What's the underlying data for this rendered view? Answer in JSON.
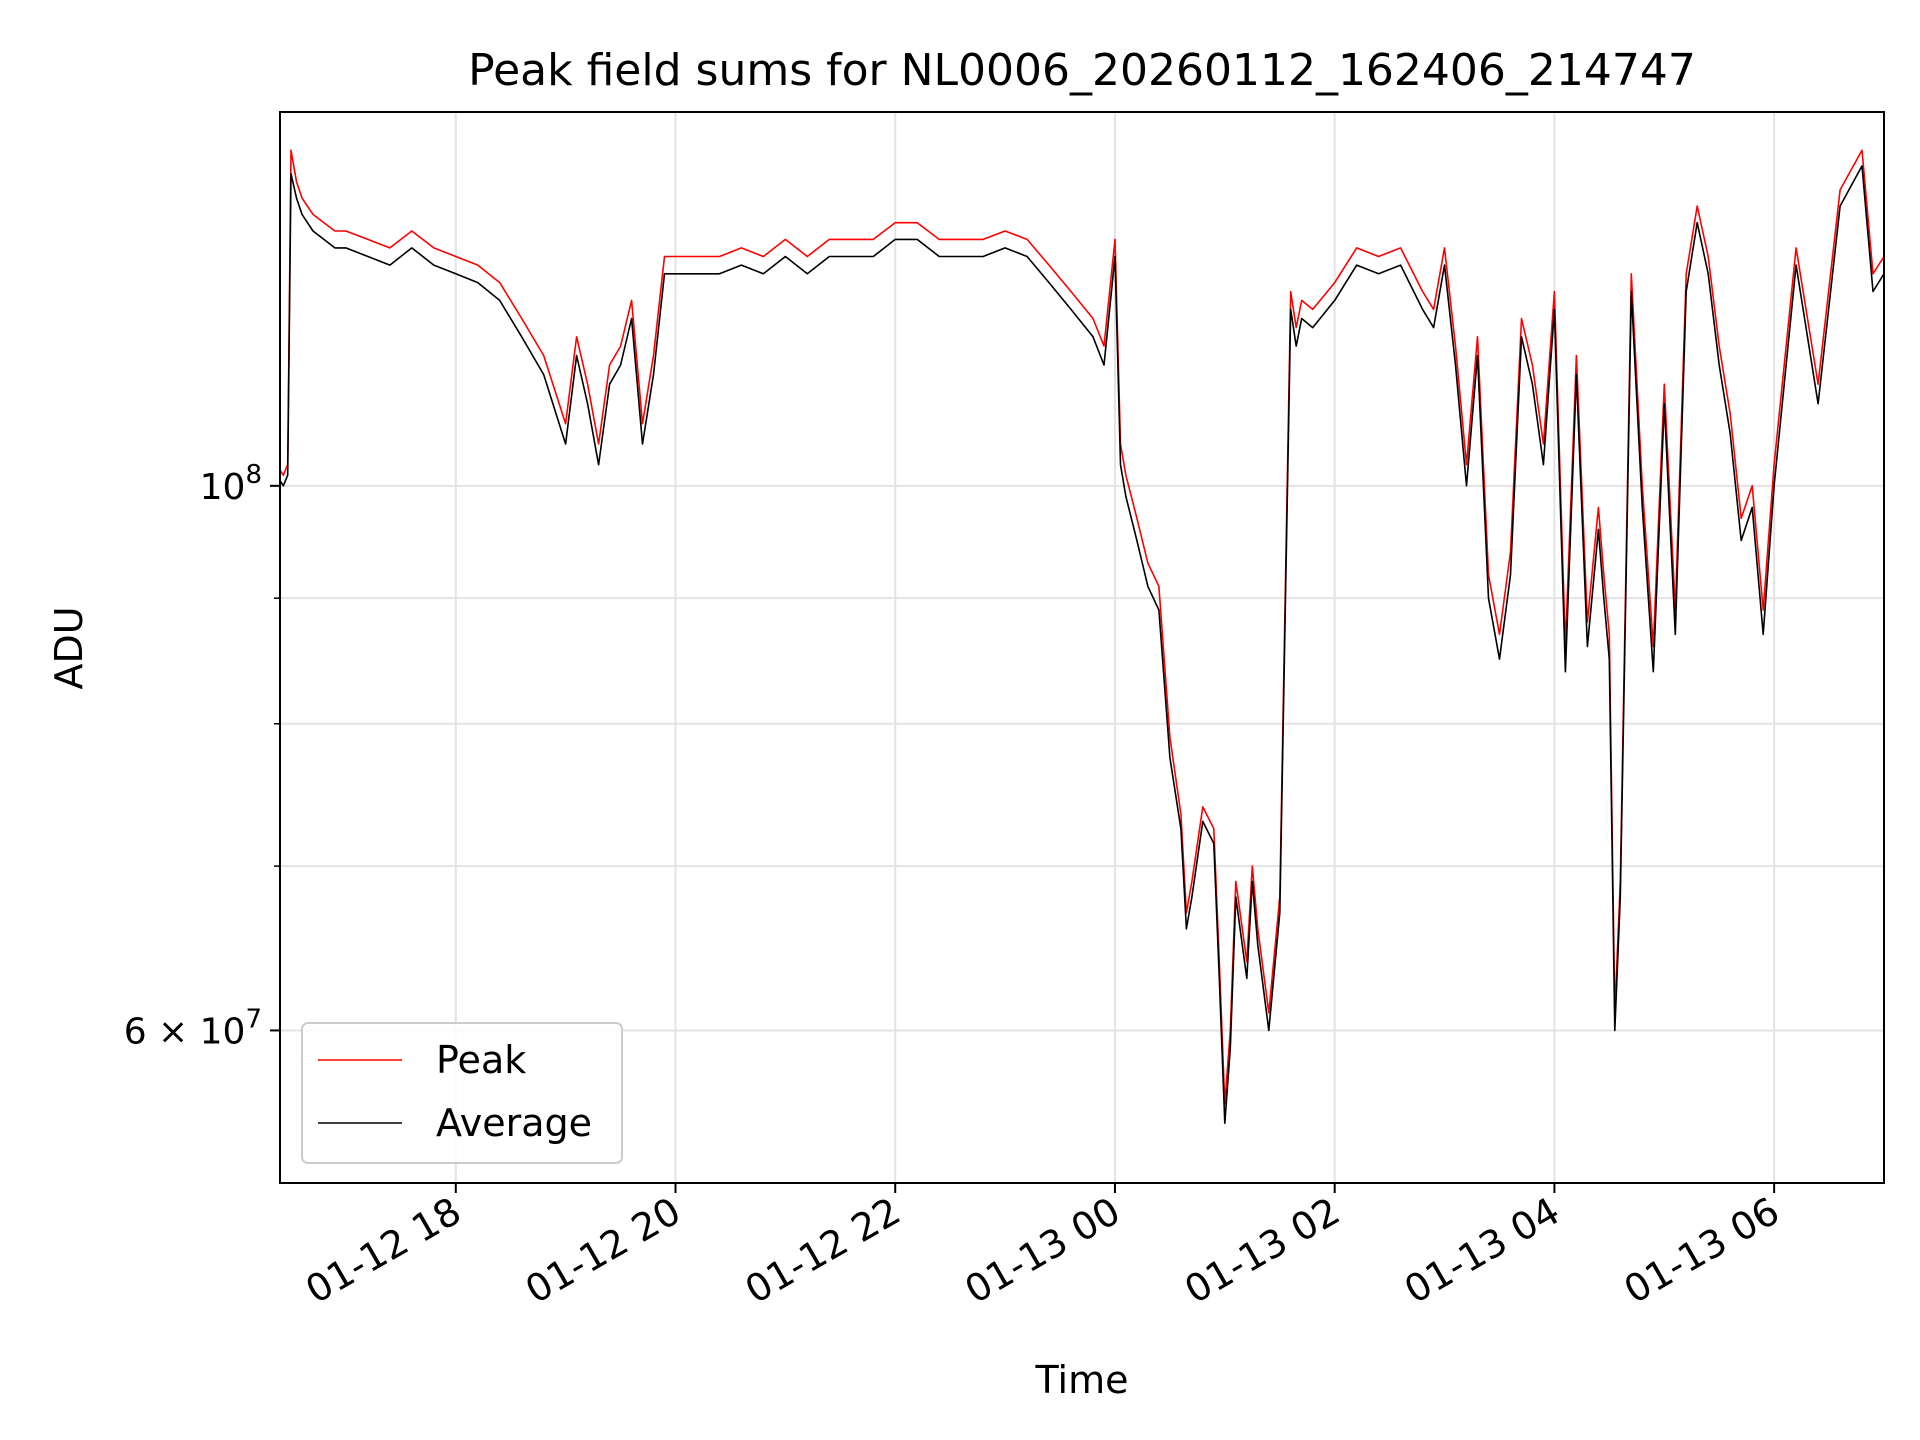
{
  "chart_data": {
    "type": "line",
    "title": "Peak field sums for NL0006_20260112_162406_214747",
    "xlabel": "Time",
    "ylabel": "ADU",
    "yscale": "log",
    "ylim": [
      52000000,
      142000000
    ],
    "xlim_hours": [
      16.4,
      31.0
    ],
    "x_ticks": [
      {
        "hours": 18,
        "label": "01-12 18"
      },
      {
        "hours": 20,
        "label": "01-12 20"
      },
      {
        "hours": 22,
        "label": "01-12 22"
      },
      {
        "hours": 24,
        "label": "01-13 00"
      },
      {
        "hours": 26,
        "label": "01-13 02"
      },
      {
        "hours": 28,
        "label": "01-13 04"
      },
      {
        "hours": 30,
        "label": "01-13 06"
      }
    ],
    "y_major_ticks": [
      {
        "value": 100000000,
        "base": "10",
        "exp": "8"
      },
      {
        "value": 60000000,
        "base": "6 × 10",
        "exp": "7"
      }
    ],
    "y_minor_ticks": [
      70000000,
      80000000,
      90000000
    ],
    "grid": true,
    "legend_position": "lower-left",
    "legend": [
      {
        "name": "Peak",
        "color": "#ff0000"
      },
      {
        "name": "Average",
        "color": "#000000"
      }
    ],
    "series": [
      {
        "name": "Peak",
        "color": "#ff0000",
        "x_hours": [
          16.4,
          16.43,
          16.47,
          16.5,
          16.55,
          16.6,
          16.7,
          16.8,
          16.9,
          17.0,
          17.2,
          17.4,
          17.6,
          17.8,
          18.0,
          18.2,
          18.4,
          18.6,
          18.8,
          19.0,
          19.1,
          19.2,
          19.3,
          19.4,
          19.5,
          19.6,
          19.7,
          19.8,
          19.9,
          20.0,
          20.2,
          20.4,
          20.6,
          20.8,
          21.0,
          21.2,
          21.4,
          21.6,
          21.8,
          22.0,
          22.2,
          22.4,
          22.6,
          22.8,
          23.0,
          23.2,
          23.4,
          23.6,
          23.8,
          23.9,
          24.0,
          24.05,
          24.1,
          24.2,
          24.3,
          24.4,
          24.5,
          24.6,
          24.65,
          24.7,
          24.8,
          24.9,
          24.95,
          25.0,
          25.05,
          25.1,
          25.2,
          25.25,
          25.3,
          25.4,
          25.5,
          25.6,
          25.65,
          25.7,
          25.8,
          26.0,
          26.2,
          26.4,
          26.6,
          26.8,
          26.9,
          27.0,
          27.1,
          27.2,
          27.3,
          27.4,
          27.5,
          27.6,
          27.7,
          27.8,
          27.9,
          28.0,
          28.1,
          28.2,
          28.3,
          28.4,
          28.45,
          28.5,
          28.55,
          28.6,
          28.7,
          28.8,
          28.9,
          29.0,
          29.1,
          29.2,
          29.3,
          29.4,
          29.5,
          29.6,
          29.7,
          29.8,
          29.9,
          30.0,
          30.2,
          30.4,
          30.6,
          30.8,
          30.9,
          31.0
        ],
        "values": [
          101.5,
          101,
          102,
          137,
          133,
          131,
          129,
          128,
          127,
          127,
          126,
          125,
          127,
          125,
          124,
          123,
          121,
          117,
          113,
          106,
          115,
          110,
          104,
          112,
          114,
          119,
          106,
          113,
          124,
          124,
          124,
          124,
          125,
          124,
          126,
          124,
          126,
          126,
          126,
          128,
          128,
          126,
          126,
          126,
          127,
          126,
          123,
          120,
          117,
          114,
          126,
          104,
          101,
          97,
          93,
          91,
          79,
          73.5,
          67,
          69,
          74,
          72.5,
          64,
          56,
          60,
          69,
          64,
          70,
          66,
          61,
          68,
          120,
          116,
          119,
          118,
          121,
          125,
          124,
          125,
          120,
          118,
          125,
          114,
          102,
          115,
          92,
          87,
          94,
          117,
          112,
          104,
          120,
          86,
          113,
          88,
          98,
          92,
          87,
          61,
          69,
          122,
          100,
          86,
          110,
          89,
          122,
          130,
          124,
          114,
          107,
          97,
          100,
          89,
          102,
          125,
          110,
          132,
          137,
          122,
          124
        ],
        "values_unit": "millions of ADU"
      },
      {
        "name": "Average",
        "color": "#000000",
        "x_hours": [
          16.4,
          16.43,
          16.47,
          16.5,
          16.55,
          16.6,
          16.7,
          16.8,
          16.9,
          17.0,
          17.2,
          17.4,
          17.6,
          17.8,
          18.0,
          18.2,
          18.4,
          18.6,
          18.8,
          19.0,
          19.1,
          19.2,
          19.3,
          19.4,
          19.5,
          19.6,
          19.7,
          19.8,
          19.9,
          20.0,
          20.2,
          20.4,
          20.6,
          20.8,
          21.0,
          21.2,
          21.4,
          21.6,
          21.8,
          22.0,
          22.2,
          22.4,
          22.6,
          22.8,
          23.0,
          23.2,
          23.4,
          23.6,
          23.8,
          23.9,
          24.0,
          24.05,
          24.1,
          24.2,
          24.3,
          24.4,
          24.5,
          24.6,
          24.65,
          24.7,
          24.8,
          24.9,
          24.95,
          25.0,
          25.05,
          25.1,
          25.2,
          25.25,
          25.3,
          25.4,
          25.5,
          25.6,
          25.65,
          25.7,
          25.8,
          26.0,
          26.2,
          26.4,
          26.6,
          26.8,
          26.9,
          27.0,
          27.1,
          27.2,
          27.3,
          27.4,
          27.5,
          27.6,
          27.7,
          27.8,
          27.9,
          28.0,
          28.1,
          28.2,
          28.3,
          28.4,
          28.45,
          28.5,
          28.55,
          28.6,
          28.7,
          28.8,
          28.9,
          29.0,
          29.1,
          29.2,
          29.3,
          29.4,
          29.5,
          29.6,
          29.7,
          29.8,
          29.9,
          30.0,
          30.2,
          30.4,
          30.6,
          30.8,
          30.9,
          31.0
        ],
        "values": [
          100.5,
          100,
          101,
          134,
          131,
          129,
          127,
          126,
          125,
          125,
          124,
          123,
          125,
          123,
          122,
          121,
          119,
          115,
          111,
          104,
          113,
          108,
          102,
          110,
          112,
          117,
          104,
          111,
          122,
          122,
          122,
          122,
          123,
          122,
          124,
          122,
          124,
          124,
          124,
          126,
          126,
          124,
          124,
          124,
          125,
          124,
          121,
          118,
          115,
          112,
          124,
          102,
          99,
          95,
          91,
          89,
          77.5,
          72.5,
          66,
          68,
          73,
          71.5,
          63,
          55,
          59,
          68,
          63,
          69,
          65,
          60,
          67,
          118,
          114,
          117,
          116,
          119,
          123,
          122,
          123,
          118,
          116,
          123,
          112,
          100,
          113,
          90,
          85,
          92,
          115,
          110,
          102,
          118,
          84,
          111,
          86,
          96,
          90,
          85,
          60,
          68,
          120,
          98,
          84,
          108,
          87,
          120,
          128,
          122,
          112,
          105,
          95,
          98,
          87,
          100,
          123,
          108,
          130,
          135,
          120,
          122
        ],
        "values_unit": "millions of ADU"
      }
    ]
  }
}
